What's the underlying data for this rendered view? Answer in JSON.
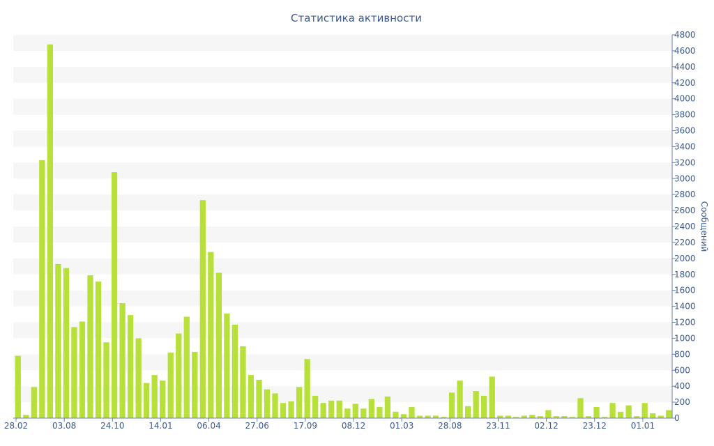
{
  "chart_data": {
    "type": "bar",
    "title": "Статистика активности",
    "ylabel": "Сообщений",
    "ylim": [
      0,
      4800
    ],
    "yticks": [
      0,
      200,
      400,
      600,
      800,
      1000,
      1200,
      1400,
      1600,
      1800,
      2000,
      2200,
      2400,
      2600,
      2800,
      3000,
      3200,
      3400,
      3600,
      3800,
      4000,
      4200,
      4400,
      4600,
      4800
    ],
    "xticks": [
      {
        "label": "28.02",
        "index": 0
      },
      {
        "label": "03.08",
        "index": 6
      },
      {
        "label": "24.10",
        "index": 12
      },
      {
        "label": "14.01",
        "index": 18
      },
      {
        "label": "06.04",
        "index": 24
      },
      {
        "label": "27.06",
        "index": 30
      },
      {
        "label": "17.09",
        "index": 36
      },
      {
        "label": "08.12",
        "index": 42
      },
      {
        "label": "01.03",
        "index": 48
      },
      {
        "label": "28.08",
        "index": 54
      },
      {
        "label": "23.11",
        "index": 60
      },
      {
        "label": "02.12",
        "index": 66
      },
      {
        "label": "23.12",
        "index": 72
      },
      {
        "label": "01.01",
        "index": 78
      }
    ],
    "values": [
      780,
      40,
      390,
      3230,
      4680,
      1930,
      1880,
      1140,
      1210,
      1790,
      1710,
      950,
      3080,
      1440,
      1290,
      1000,
      440,
      540,
      470,
      820,
      1060,
      1270,
      830,
      2730,
      2080,
      1820,
      1310,
      1170,
      900,
      540,
      480,
      360,
      310,
      190,
      210,
      390,
      740,
      280,
      190,
      220,
      220,
      120,
      180,
      120,
      240,
      140,
      270,
      80,
      50,
      140,
      30,
      30,
      30,
      15,
      320,
      470,
      150,
      340,
      280,
      520,
      30,
      30,
      15,
      30,
      40,
      25,
      100,
      25,
      25,
      15,
      250,
      25,
      140,
      15,
      190,
      80,
      160,
      25,
      190,
      60,
      30,
      100
    ],
    "bar_color": "#b8e03a",
    "band_color": "#f6f6f6",
    "axis_color": "#6c7fa8",
    "text_color": "#3d5a8c",
    "grid": "alternating-bands",
    "yaxis_side": "right"
  }
}
